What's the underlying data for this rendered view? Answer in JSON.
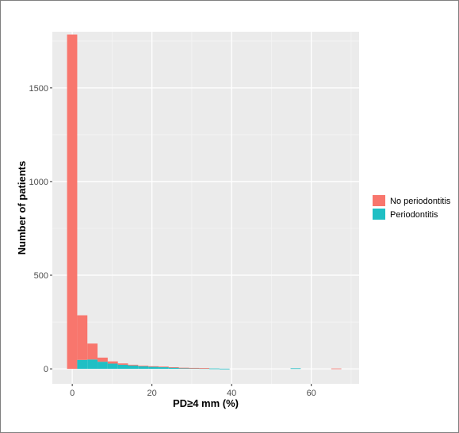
{
  "chart_data": {
    "type": "bar",
    "stacked": true,
    "xlabel": "PD≥4 mm (%)",
    "ylabel": "Number of patients",
    "xlim": [
      -5,
      72
    ],
    "ylim": [
      -80,
      1800
    ],
    "x_ticks": [
      0,
      20,
      40,
      60
    ],
    "y_ticks": [
      0,
      500,
      1000,
      1500
    ],
    "bin_width": 2.55,
    "bin_start": -1.3,
    "grid": true,
    "legend_position": "right",
    "series": [
      {
        "name": "Periodontitis",
        "color": "#1fbfc4",
        "values": [
          0,
          48,
          50,
          38,
          28,
          22,
          18,
          14,
          12,
          10,
          8,
          5,
          4,
          3,
          2,
          1,
          0,
          0,
          0,
          0,
          0,
          0,
          3,
          0,
          0,
          0,
          0
        ]
      },
      {
        "name": "No periodontitis",
        "color": "#f8766d",
        "values": [
          1785,
          238,
          85,
          22,
          12,
          7,
          4,
          3,
          2,
          2,
          1,
          1,
          1,
          1,
          0,
          0,
          0,
          0,
          0,
          0,
          0,
          0,
          0,
          0,
          0,
          0,
          2
        ]
      }
    ],
    "legend": [
      {
        "name": "No periodontitis",
        "color": "#f8766d"
      },
      {
        "name": "Periodontitis",
        "color": "#1fbfc4"
      }
    ]
  }
}
